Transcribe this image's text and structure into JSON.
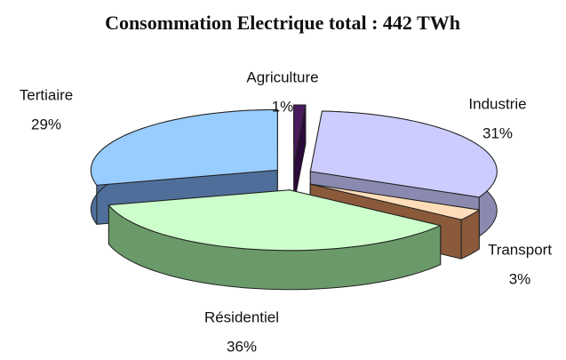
{
  "chart_data": {
    "type": "pie3d",
    "title": "Consommation Electrique total : 442 TWh",
    "categories": [
      "Agriculture",
      "Industrie",
      "Transport",
      "Résidentiel",
      "Tertiaire"
    ],
    "values": [
      1,
      31,
      3,
      36,
      29
    ],
    "value_labels": [
      "1%",
      "31%",
      "3%",
      "36%",
      "29%"
    ],
    "colors": [
      "#4a1a5c",
      "#ccccff",
      "#ffddbb",
      "#ccffcc",
      "#99ccff"
    ],
    "side_colors": [
      "#2a0a3a",
      "#8a8ab0",
      "#8a5a3a",
      "#6a9a6a",
      "#4f6f9a"
    ]
  }
}
